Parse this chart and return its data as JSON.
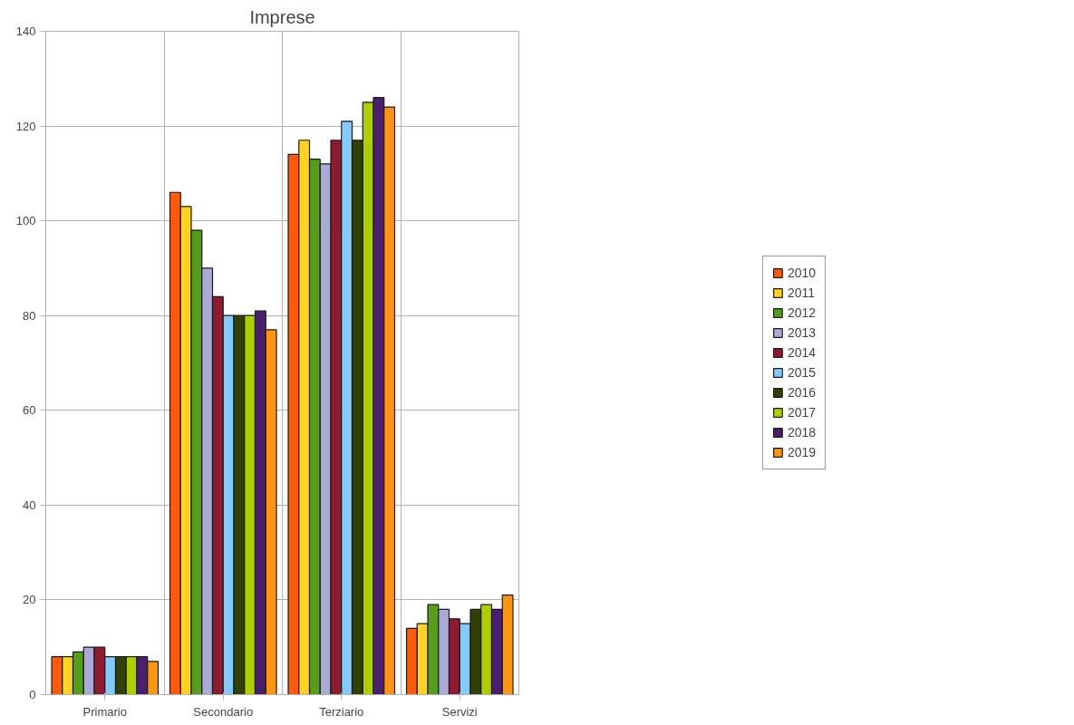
{
  "chart_data": {
    "type": "bar",
    "title": "Imprese",
    "categories": [
      "Primario",
      "Secondario",
      "Terziario",
      "Servizi"
    ],
    "series": [
      {
        "name": "2010",
        "color": "#ff5a0a",
        "values": [
          8,
          106,
          114,
          14
        ]
      },
      {
        "name": "2011",
        "color": "#ffd320",
        "values": [
          8,
          103,
          117,
          15
        ]
      },
      {
        "name": "2012",
        "color": "#579d1c",
        "values": [
          9,
          98,
          113,
          19
        ]
      },
      {
        "name": "2013",
        "color": "#aaaad6",
        "values": [
          10,
          90,
          112,
          18
        ]
      },
      {
        "name": "2014",
        "color": "#8e1a30",
        "values": [
          10,
          84,
          117,
          16
        ]
      },
      {
        "name": "2015",
        "color": "#83caff",
        "values": [
          8,
          80,
          121,
          15
        ]
      },
      {
        "name": "2016",
        "color": "#314004",
        "values": [
          8,
          80,
          117,
          18
        ]
      },
      {
        "name": "2017",
        "color": "#aecf00",
        "values": [
          8,
          80,
          125,
          19
        ]
      },
      {
        "name": "2018",
        "color": "#4b1f6f",
        "values": [
          8,
          81,
          126,
          18
        ]
      },
      {
        "name": "2019",
        "color": "#ff950e",
        "values": [
          7,
          77,
          124,
          21
        ]
      }
    ],
    "ylim": [
      0,
      140
    ],
    "yticks": [
      0,
      20,
      40,
      60,
      80,
      100,
      120,
      140
    ],
    "grid": true,
    "legend": "right"
  }
}
